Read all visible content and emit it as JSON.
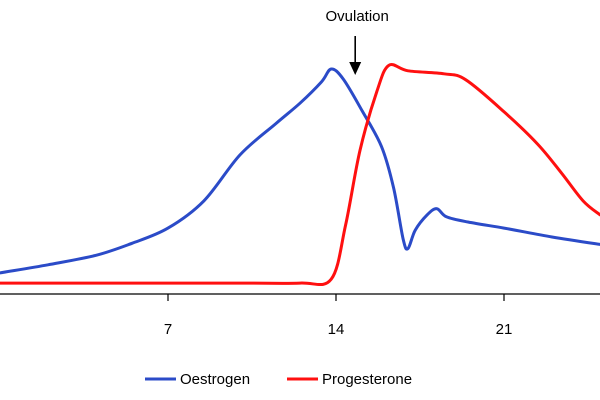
{
  "chart_data": {
    "type": "line",
    "title": "",
    "xlabel": "",
    "ylabel": "",
    "xlim": [
      0,
      25
    ],
    "ylim": [
      0,
      100
    ],
    "x_ticks": [
      7,
      14,
      21
    ],
    "y_axis_visible": false,
    "grid": false,
    "legend_position": "bottom-center",
    "annotation": {
      "text": "Ovulation",
      "x": 14.8
    },
    "series": [
      {
        "name": "Oestrogen",
        "color": "#2b4bc8",
        "points": [
          [
            0,
            5.8
          ],
          [
            2,
            9.4
          ],
          [
            4,
            13.6
          ],
          [
            5.5,
            18.9
          ],
          [
            7,
            25.6
          ],
          [
            8.5,
            37.7
          ],
          [
            10,
            58.0
          ],
          [
            11.5,
            71.9
          ],
          [
            12.5,
            80.9
          ],
          [
            13.4,
            90.4
          ],
          [
            13.8,
            96.0
          ],
          [
            14.3,
            91.6
          ],
          [
            15.1,
            77.3
          ],
          [
            15.9,
            61.6
          ],
          [
            16.4,
            43.4
          ],
          [
            16.8,
            20.6
          ],
          [
            17.0,
            16.6
          ],
          [
            17.3,
            24.7
          ],
          [
            17.8,
            31.5
          ],
          [
            18.2,
            34.2
          ],
          [
            18.6,
            30.6
          ],
          [
            19.5,
            28.3
          ],
          [
            21,
            25.6
          ],
          [
            23,
            21.7
          ],
          [
            25,
            18.4
          ]
        ]
      },
      {
        "name": "Progesterone",
        "color": "#ff1010",
        "points": [
          [
            0,
            1.3
          ],
          [
            5,
            1.3
          ],
          [
            10,
            1.3
          ],
          [
            12.5,
            1.3
          ],
          [
            13.8,
            3.0
          ],
          [
            14.4,
            27.0
          ],
          [
            15.0,
            60.0
          ],
          [
            15.7,
            86.0
          ],
          [
            16.2,
            97.6
          ],
          [
            17,
            95.2
          ],
          [
            18.5,
            93.9
          ],
          [
            19.4,
            91.3
          ],
          [
            21,
            77.1
          ],
          [
            22.4,
            62.8
          ],
          [
            23.4,
            49.9
          ],
          [
            24.3,
            37.6
          ],
          [
            25,
            31.5
          ]
        ]
      }
    ]
  }
}
